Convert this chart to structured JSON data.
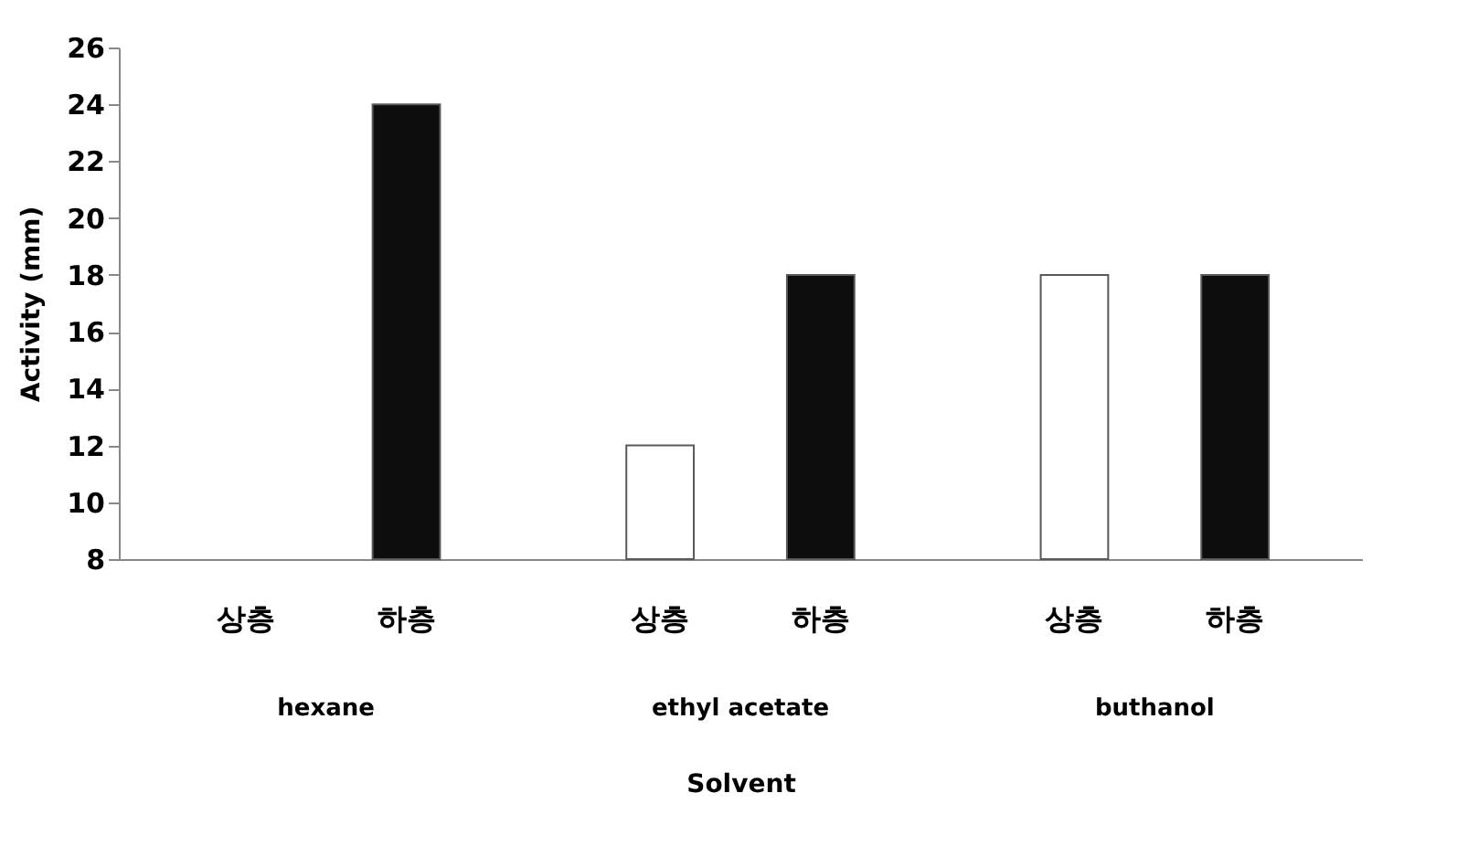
{
  "chart_data": {
    "type": "bar",
    "xlabel": "Solvent",
    "ylabel": "Activity (mm)",
    "categories": [
      "hexane",
      "ethyl acetate",
      "buthanol"
    ],
    "series": [
      {
        "name": "상층",
        "color": "#ffffff",
        "values": [
          null,
          12,
          18
        ]
      },
      {
        "name": "하층",
        "color": "#0d0d0d",
        "values": [
          24,
          18,
          18
        ]
      }
    ],
    "ylim": [
      8,
      26
    ],
    "yticks": [
      8,
      10,
      12,
      14,
      16,
      18,
      20,
      22,
      24,
      26
    ],
    "grid": false,
    "legend": false
  }
}
